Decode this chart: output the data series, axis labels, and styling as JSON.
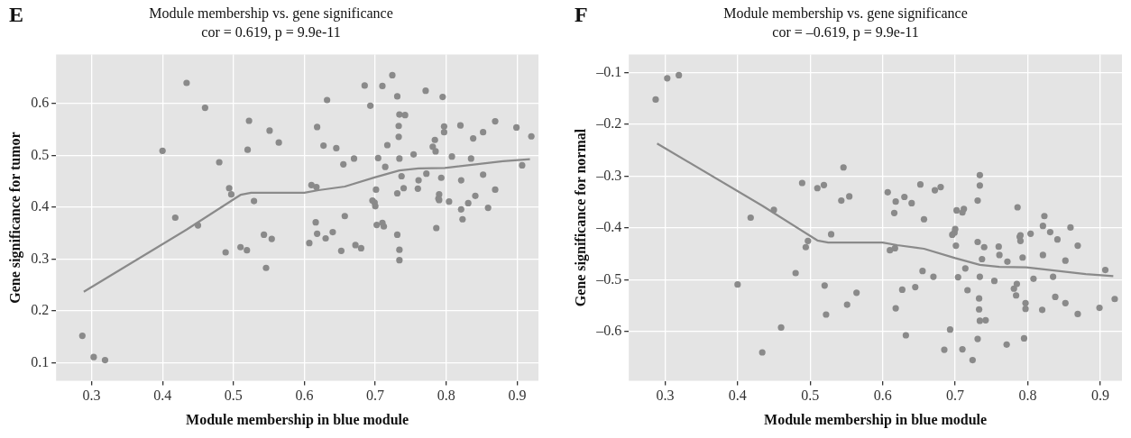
{
  "chart_data": [
    {
      "type": "scatter",
      "title": "Module membership vs. gene significance",
      "subtitle": "cor = 0.619, p = 9.9e-11",
      "xlabel": "Module membership in blue module",
      "ylabel": "Gene significance for tumor",
      "annotations": [
        "E"
      ],
      "xlim": [
        0.25,
        0.93
      ],
      "ylim": [
        0.065,
        0.695
      ],
      "xticks": [
        0.3,
        0.4,
        0.5,
        0.6,
        0.7,
        0.8,
        0.9
      ],
      "yticks": [
        0.1,
        0.2,
        0.3,
        0.4,
        0.5,
        0.6
      ],
      "grid": true,
      "legend": false,
      "series": [
        {
          "type": "scatter",
          "marker": "circle",
          "color": "#8a8a8a",
          "x": [
            0.287,
            0.303,
            0.319,
            0.4,
            0.418,
            0.434,
            0.45,
            0.46,
            0.48,
            0.489,
            0.494,
            0.497,
            0.51,
            0.519,
            0.52,
            0.522,
            0.529,
            0.543,
            0.546,
            0.551,
            0.554,
            0.564,
            0.632,
            0.618,
            0.627,
            0.645,
            0.655,
            0.67,
            0.685,
            0.693,
            0.71,
            0.724,
            0.731,
            0.734,
            0.742,
            0.733,
            0.733,
            0.717,
            0.704,
            0.714,
            0.734,
            0.754,
            0.771,
            0.795,
            0.797,
            0.797,
            0.82,
            0.784,
            0.781,
            0.785,
            0.808,
            0.838,
            0.852,
            0.869,
            0.835,
            0.737,
            0.731,
            0.74,
            0.761,
            0.772,
            0.793,
            0.821,
            0.852,
            0.869,
            0.701,
            0.696,
            0.699,
            0.7,
            0.76,
            0.79,
            0.789,
            0.79,
            0.804,
            0.841,
            0.831,
            0.821,
            0.859,
            0.823,
            0.786,
            0.61,
            0.617,
            0.657,
            0.616,
            0.618,
            0.63,
            0.64,
            0.607,
            0.652,
            0.672,
            0.68,
            0.702,
            0.71,
            0.712,
            0.731,
            0.734,
            0.734,
            0.899,
            0.907,
            0.92
          ],
          "values": [
            0.152,
            0.111,
            0.105,
            0.509,
            0.38,
            0.64,
            0.365,
            0.592,
            0.487,
            0.313,
            0.437,
            0.425,
            0.323,
            0.317,
            0.511,
            0.567,
            0.412,
            0.347,
            0.283,
            0.548,
            0.339,
            0.525,
            0.607,
            0.555,
            0.519,
            0.514,
            0.483,
            0.494,
            0.635,
            0.596,
            0.634,
            0.655,
            0.614,
            0.579,
            0.578,
            0.557,
            0.536,
            0.52,
            0.495,
            0.478,
            0.494,
            0.502,
            0.625,
            0.613,
            0.556,
            0.545,
            0.558,
            0.53,
            0.517,
            0.508,
            0.498,
            0.533,
            0.545,
            0.566,
            0.494,
            0.46,
            0.427,
            0.437,
            0.452,
            0.465,
            0.457,
            0.452,
            0.463,
            0.434,
            0.434,
            0.413,
            0.409,
            0.402,
            0.436,
            0.425,
            0.417,
            0.414,
            0.411,
            0.422,
            0.408,
            0.396,
            0.399,
            0.377,
            0.36,
            0.443,
            0.439,
            0.383,
            0.371,
            0.349,
            0.34,
            0.352,
            0.331,
            0.316,
            0.327,
            0.321,
            0.366,
            0.37,
            0.363,
            0.347,
            0.318,
            0.298,
            0.554,
            0.481,
            0.537
          ]
        },
        {
          "type": "line",
          "color": "#8a8a8a",
          "x": [
            0.289,
            0.434,
            0.51,
            0.525,
            0.6,
            0.62,
            0.657,
            0.7,
            0.734,
            0.761,
            0.798,
            0.88,
            0.918
          ],
          "values": [
            0.237,
            0.357,
            0.424,
            0.428,
            0.428,
            0.433,
            0.44,
            0.458,
            0.471,
            0.475,
            0.476,
            0.489,
            0.493
          ]
        }
      ]
    },
    {
      "type": "scatter",
      "title": "Module membership vs. gene significance",
      "subtitle": "cor = –0.619, p = 9.9e-11",
      "xlabel": "Module membership in blue module",
      "ylabel": "Gene significance for normal",
      "annotations": [
        "F"
      ],
      "xlim": [
        0.25,
        0.93
      ],
      "ylim": [
        -0.695,
        -0.065
      ],
      "xticks": [
        0.3,
        0.4,
        0.5,
        0.6,
        0.7,
        0.8,
        0.9
      ],
      "yticks": [
        {
          "value": -0.6,
          "label": "–0.6"
        },
        {
          "value": -0.5,
          "label": "–0.5"
        },
        {
          "value": -0.4,
          "label": "–0.4"
        },
        {
          "value": -0.3,
          "label": "–0.3"
        },
        {
          "value": -0.2,
          "label": "–0.2"
        },
        {
          "value": -0.1,
          "label": "–0.1"
        }
      ],
      "grid": true,
      "legend": false,
      "series": [
        {
          "type": "scatter",
          "marker": "circle",
          "color": "#8a8a8a",
          "x": [
            0.287,
            0.303,
            0.319,
            0.4,
            0.418,
            0.434,
            0.45,
            0.46,
            0.48,
            0.489,
            0.494,
            0.497,
            0.51,
            0.519,
            0.52,
            0.522,
            0.529,
            0.543,
            0.546,
            0.551,
            0.554,
            0.564,
            0.632,
            0.618,
            0.627,
            0.645,
            0.655,
            0.67,
            0.685,
            0.693,
            0.71,
            0.724,
            0.731,
            0.734,
            0.742,
            0.733,
            0.733,
            0.717,
            0.704,
            0.714,
            0.734,
            0.754,
            0.771,
            0.795,
            0.797,
            0.797,
            0.82,
            0.784,
            0.781,
            0.785,
            0.808,
            0.838,
            0.852,
            0.869,
            0.835,
            0.737,
            0.731,
            0.74,
            0.761,
            0.772,
            0.793,
            0.821,
            0.852,
            0.869,
            0.701,
            0.696,
            0.699,
            0.7,
            0.76,
            0.79,
            0.789,
            0.79,
            0.804,
            0.841,
            0.831,
            0.821,
            0.859,
            0.823,
            0.786,
            0.61,
            0.617,
            0.657,
            0.616,
            0.618,
            0.63,
            0.64,
            0.607,
            0.652,
            0.672,
            0.68,
            0.702,
            0.71,
            0.712,
            0.731,
            0.734,
            0.734,
            0.899,
            0.907,
            0.92
          ],
          "values": [
            -0.152,
            -0.111,
            -0.105,
            -0.509,
            -0.38,
            -0.64,
            -0.365,
            -0.592,
            -0.487,
            -0.313,
            -0.437,
            -0.425,
            -0.323,
            -0.317,
            -0.511,
            -0.567,
            -0.412,
            -0.347,
            -0.283,
            -0.548,
            -0.339,
            -0.525,
            -0.607,
            -0.555,
            -0.519,
            -0.514,
            -0.483,
            -0.494,
            -0.635,
            -0.596,
            -0.634,
            -0.655,
            -0.614,
            -0.579,
            -0.578,
            -0.557,
            -0.536,
            -0.52,
            -0.495,
            -0.478,
            -0.494,
            -0.502,
            -0.625,
            -0.613,
            -0.556,
            -0.545,
            -0.558,
            -0.53,
            -0.517,
            -0.508,
            -0.498,
            -0.533,
            -0.545,
            -0.566,
            -0.494,
            -0.46,
            -0.427,
            -0.437,
            -0.452,
            -0.465,
            -0.457,
            -0.452,
            -0.463,
            -0.434,
            -0.434,
            -0.413,
            -0.409,
            -0.402,
            -0.436,
            -0.425,
            -0.417,
            -0.414,
            -0.411,
            -0.422,
            -0.408,
            -0.396,
            -0.399,
            -0.377,
            -0.36,
            -0.443,
            -0.439,
            -0.383,
            -0.371,
            -0.349,
            -0.34,
            -0.352,
            -0.331,
            -0.316,
            -0.327,
            -0.321,
            -0.366,
            -0.37,
            -0.363,
            -0.347,
            -0.318,
            -0.298,
            -0.554,
            -0.481,
            -0.537
          ]
        },
        {
          "type": "line",
          "color": "#8a8a8a",
          "x": [
            0.289,
            0.434,
            0.51,
            0.525,
            0.6,
            0.62,
            0.657,
            0.7,
            0.734,
            0.761,
            0.798,
            0.88,
            0.918
          ],
          "values": [
            -0.237,
            -0.357,
            -0.424,
            -0.428,
            -0.428,
            -0.433,
            -0.44,
            -0.458,
            -0.471,
            -0.475,
            -0.476,
            -0.489,
            -0.493
          ]
        }
      ]
    }
  ]
}
